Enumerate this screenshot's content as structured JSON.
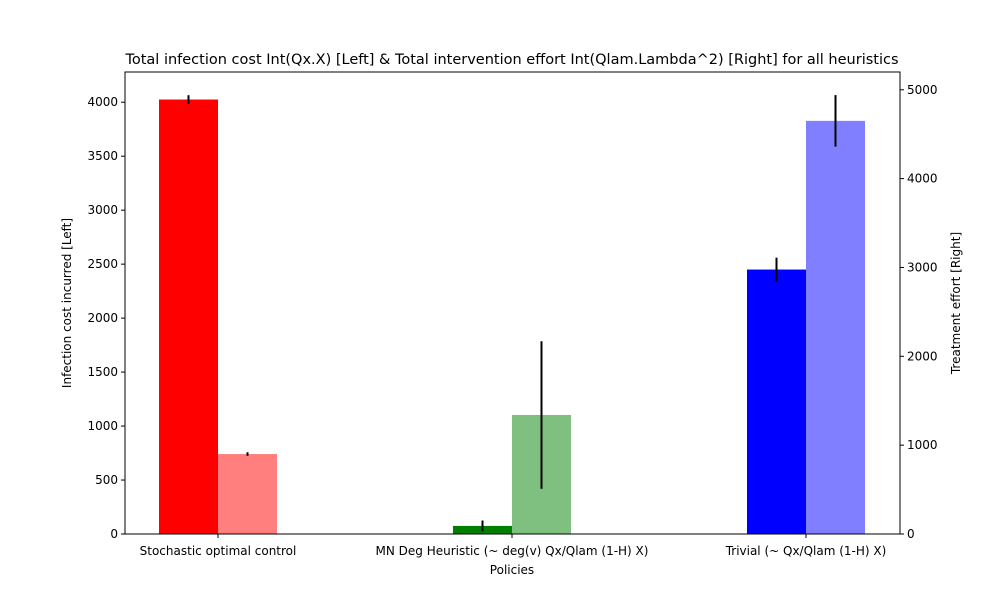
{
  "chart_data": {
    "type": "bar",
    "title": "Total infection cost Int(Qx.X) [Left] & Total intervention effort Int(Qlam.Lambda^2) [Right] for all heuristics",
    "xlabel": "Policies",
    "ylabel_left": "Infection cost incurred [Left]",
    "ylabel_right": "Treatment effort [Right]",
    "categories": [
      "Stochastic optimal control",
      "MN Deg Heuristic (~ deg(v) Qx/Qlam (1-H) X)",
      "Trivial (~ Qx/Qlam (1-H) X)"
    ],
    "ylim_left": [
      0,
      4280
    ],
    "ylim_right": [
      0,
      5200
    ],
    "yticks_left": [
      0,
      500,
      1000,
      1500,
      2000,
      2500,
      3000,
      3500,
      4000
    ],
    "yticks_right": [
      0,
      1000,
      2000,
      3000,
      4000,
      5000
    ],
    "series": [
      {
        "axis": "left",
        "values": [
          4025,
          75,
          2450
        ],
        "errors": [
          40,
          50,
          110
        ],
        "colors": [
          "#ff0000",
          "#008000",
          "#0000ff"
        ],
        "alpha": 1.0
      },
      {
        "axis": "right",
        "values": [
          900,
          1340,
          4650
        ],
        "errors": [
          20,
          830,
          290
        ],
        "colors": [
          "#ff0000",
          "#008000",
          "#0000ff"
        ],
        "alpha": 0.5
      }
    ],
    "grid": false
  }
}
